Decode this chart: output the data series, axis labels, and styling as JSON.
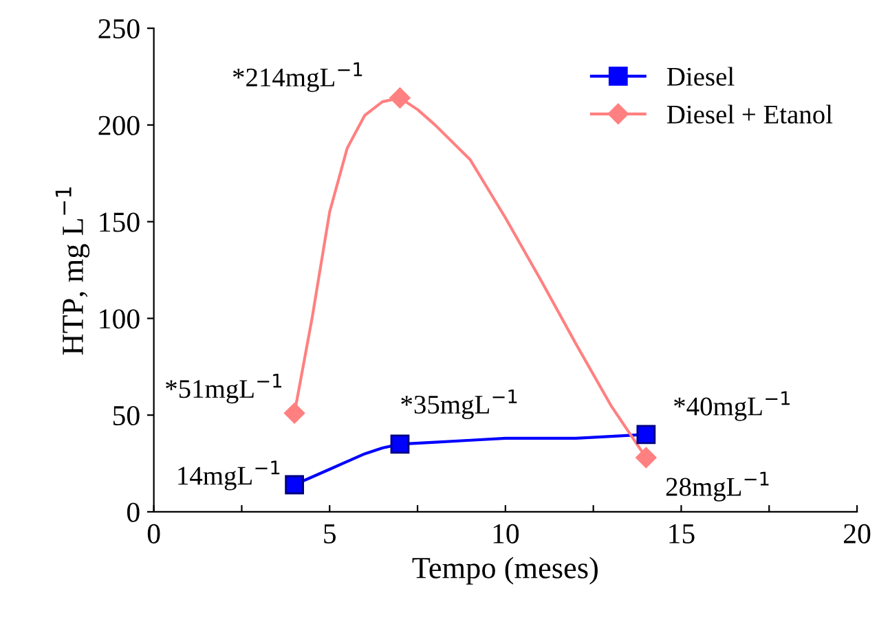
{
  "chart_data": {
    "type": "line",
    "xlabel": "Tempo (meses)",
    "ylabel": "HTP, mg L$^{−1}$",
    "series": [
      {
        "name": "Diesel",
        "color": "#0000ff",
        "marker": "none",
        "x": [
          4,
          5,
          5.5,
          6,
          6.5,
          7,
          8,
          9,
          10,
          11,
          12,
          13,
          14
        ],
        "values": [
          14,
          22,
          26,
          30,
          33,
          35,
          36,
          37,
          38,
          38,
          38,
          39,
          40
        ]
      },
      {
        "name": "Diesel + Etanol",
        "color": "#ff8080",
        "marker": "none",
        "x": [
          4,
          4.5,
          5,
          5.5,
          6,
          6.5,
          7,
          7.5,
          8,
          9,
          9.5,
          10,
          11,
          12,
          13,
          14
        ],
        "values": [
          51,
          100,
          155,
          188,
          205,
          212,
          214,
          208,
          200,
          182,
          167,
          152,
          120,
          87,
          55,
          28
        ]
      },
      {
        "type": "scatter",
        "color": "#0000ff",
        "marker": "square",
        "x": [
          4,
          7,
          14
        ],
        "values": [
          14,
          35,
          40
        ]
      },
      {
        "type": "scatter",
        "color": "#ff8080",
        "marker": "diamond",
        "x": [
          4,
          7,
          14
        ],
        "values": [
          51,
          214,
          28
        ]
      }
    ],
    "xlim": [
      0,
      20
    ],
    "xticks": [
      0,
      {
        "value": 2.5,
        "label": null
      },
      5,
      {
        "value": 7.5,
        "label": null
      },
      10,
      {
        "value": 12.5,
        "label": null
      },
      15,
      {
        "value": 17.5,
        "label": null
      },
      20
    ],
    "ylim": [
      0,
      250
    ],
    "yticks": [
      0,
      50,
      100,
      150,
      200,
      250
    ],
    "grid": false,
    "legend": "top right",
    "line_style": "solid",
    "annotations": [
      {
        "text": "14mgL$^{−1}$",
        "x": 4,
        "y": 14
      },
      {
        "text": "*35mgL$^{−1}$",
        "x": 7,
        "y": 35
      },
      {
        "text": "*40mgL$^{−1}$",
        "x": 14,
        "y": 40
      },
      {
        "text": "*51mgL$^{−1}$",
        "x": 4,
        "y": 51
      },
      {
        "text": "*214mgL$^{−1}$",
        "x": 7,
        "y": 214
      },
      {
        "text": "28mgL$^{−1}$",
        "x": 14,
        "y": 28
      }
    ]
  }
}
